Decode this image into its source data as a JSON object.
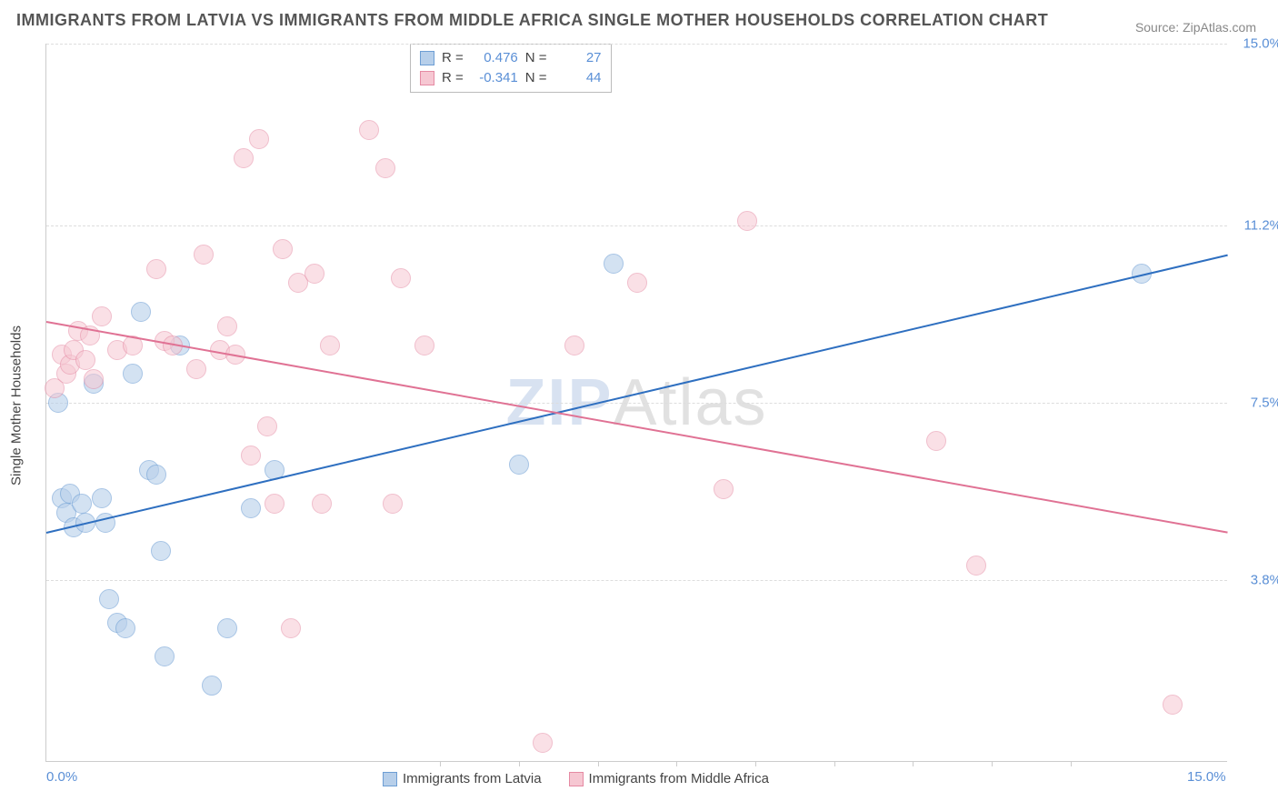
{
  "title": "IMMIGRANTS FROM LATVIA VS IMMIGRANTS FROM MIDDLE AFRICA SINGLE MOTHER HOUSEHOLDS CORRELATION CHART",
  "source": "Source: ZipAtlas.com",
  "ylabel": "Single Mother Households",
  "watermark_a": "ZIP",
  "watermark_b": "Atlas",
  "chart": {
    "type": "scatter",
    "background_color": "#ffffff",
    "grid_color": "#dddddd",
    "axis_color": "#cccccc",
    "tick_label_color": "#5a8fd6",
    "xlim": [
      0,
      15
    ],
    "ylim": [
      0,
      15
    ],
    "ytick_values": [
      3.8,
      7.5,
      11.2,
      15.0
    ],
    "ytick_labels": [
      "3.8%",
      "7.5%",
      "11.2%",
      "15.0%"
    ],
    "xtick_values": [
      0,
      15
    ],
    "xtick_labels": [
      "0.0%",
      "15.0%"
    ],
    "x_minor_ticks": [
      5,
      6,
      7,
      8,
      9,
      10,
      11,
      12,
      13
    ],
    "series": [
      {
        "name": "Immigrants from Latvia",
        "key": "latvia",
        "fill": "#b7cfea",
        "stroke": "#6d9ed4",
        "fill_opacity": 0.6,
        "marker_radius": 11,
        "r_value": "0.476",
        "n_value": "27",
        "trend": {
          "x1": 0,
          "y1": 4.8,
          "x2": 15,
          "y2": 10.6,
          "color": "#2e6fc0",
          "width": 2
        },
        "points": [
          [
            0.15,
            7.5
          ],
          [
            0.2,
            5.5
          ],
          [
            0.25,
            5.2
          ],
          [
            0.3,
            5.6
          ],
          [
            0.35,
            4.9
          ],
          [
            0.45,
            5.4
          ],
          [
            0.5,
            5.0
          ],
          [
            0.6,
            7.9
          ],
          [
            0.7,
            5.5
          ],
          [
            0.75,
            5.0
          ],
          [
            0.8,
            3.4
          ],
          [
            0.9,
            2.9
          ],
          [
            1.0,
            2.8
          ],
          [
            1.1,
            8.1
          ],
          [
            1.2,
            9.4
          ],
          [
            1.3,
            6.1
          ],
          [
            1.4,
            6.0
          ],
          [
            1.45,
            4.4
          ],
          [
            1.5,
            2.2
          ],
          [
            1.7,
            8.7
          ],
          [
            2.1,
            1.6
          ],
          [
            2.3,
            2.8
          ],
          [
            2.6,
            5.3
          ],
          [
            2.9,
            6.1
          ],
          [
            6.0,
            6.2
          ],
          [
            7.2,
            10.4
          ],
          [
            13.9,
            10.2
          ]
        ]
      },
      {
        "name": "Immigrants from Middle Africa",
        "key": "middle_africa",
        "fill": "#f6c7d2",
        "stroke": "#e58aa3",
        "fill_opacity": 0.55,
        "marker_radius": 11,
        "r_value": "-0.341",
        "n_value": "44",
        "trend": {
          "x1": 0,
          "y1": 9.2,
          "x2": 15,
          "y2": 4.8,
          "color": "#e07294",
          "width": 2
        },
        "points": [
          [
            0.1,
            7.8
          ],
          [
            0.2,
            8.5
          ],
          [
            0.25,
            8.1
          ],
          [
            0.3,
            8.3
          ],
          [
            0.35,
            8.6
          ],
          [
            0.4,
            9.0
          ],
          [
            0.5,
            8.4
          ],
          [
            0.55,
            8.9
          ],
          [
            0.6,
            8.0
          ],
          [
            0.7,
            9.3
          ],
          [
            0.9,
            8.6
          ],
          [
            1.1,
            8.7
          ],
          [
            1.4,
            10.3
          ],
          [
            1.5,
            8.8
          ],
          [
            1.6,
            8.7
          ],
          [
            1.9,
            8.2
          ],
          [
            2.0,
            10.6
          ],
          [
            2.2,
            8.6
          ],
          [
            2.3,
            9.1
          ],
          [
            2.4,
            8.5
          ],
          [
            2.5,
            12.6
          ],
          [
            2.6,
            6.4
          ],
          [
            2.7,
            13.0
          ],
          [
            2.8,
            7.0
          ],
          [
            2.9,
            5.4
          ],
          [
            3.0,
            10.7
          ],
          [
            3.1,
            2.8
          ],
          [
            3.2,
            10.0
          ],
          [
            3.4,
            10.2
          ],
          [
            3.5,
            5.4
          ],
          [
            3.6,
            8.7
          ],
          [
            4.1,
            13.2
          ],
          [
            4.3,
            12.4
          ],
          [
            4.4,
            5.4
          ],
          [
            4.5,
            10.1
          ],
          [
            4.8,
            8.7
          ],
          [
            6.3,
            0.4
          ],
          [
            6.7,
            8.7
          ],
          [
            7.5,
            10.0
          ],
          [
            8.6,
            5.7
          ],
          [
            8.9,
            11.3
          ],
          [
            11.3,
            6.7
          ],
          [
            11.8,
            4.1
          ],
          [
            14.3,
            1.2
          ]
        ]
      }
    ]
  },
  "legend": {
    "latvia_label": "Immigrants from Latvia",
    "middle_africa_label": "Immigrants from Middle Africa",
    "r_label": "R  =",
    "n_label": "N  ="
  }
}
